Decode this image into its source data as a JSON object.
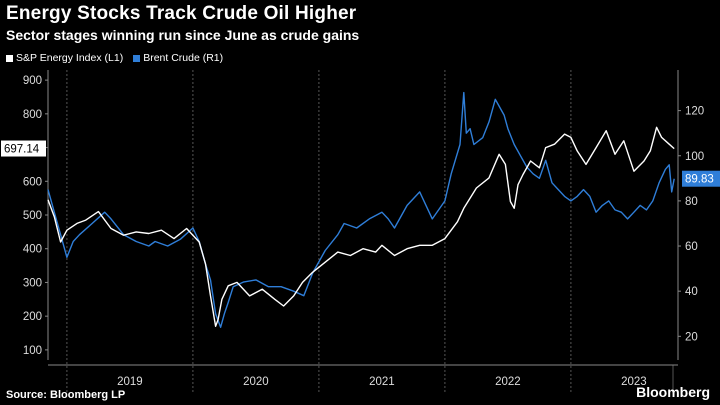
{
  "title": "Energy Stocks Track Crude Oil Higher",
  "subtitle": "Sector stages winning run since June as crude gains",
  "source": "Source: Bloomberg LP",
  "brand": "Bloomberg",
  "colors": {
    "background": "#000000",
    "energy": "#ffffff",
    "brent": "#2f7ed8",
    "grid": "#555555"
  },
  "chart_data": {
    "type": "line",
    "title": "Energy Stocks Track Crude Oil Higher",
    "subtitle": "Sector stages winning run since June as crude gains",
    "x_labels": [
      "2019",
      "2020",
      "2021",
      "2022",
      "2023"
    ],
    "x_range": [
      2018.85,
      2023.85
    ],
    "left_axis": {
      "ticks": [
        100,
        200,
        300,
        400,
        500,
        600,
        700,
        800,
        900
      ],
      "ylim": [
        70,
        930
      ]
    },
    "right_axis": {
      "ticks": [
        20,
        40,
        60,
        80,
        100,
        120
      ],
      "ylim": [
        9.5,
        138
      ]
    },
    "last_value_labels": {
      "energy": "697.14",
      "brent": "89.83"
    },
    "grid": "vertical",
    "legend_position": "top-left",
    "series": [
      {
        "name": "S&P Energy Index (L1)",
        "axis": "left",
        "x": [
          2018.85,
          2018.9,
          2018.95,
          2019.0,
          2019.08,
          2019.15,
          2019.25,
          2019.35,
          2019.45,
          2019.55,
          2019.65,
          2019.75,
          2019.85,
          2019.95,
          2020.05,
          2020.1,
          2020.14,
          2020.18,
          2020.2,
          2020.23,
          2020.28,
          2020.35,
          2020.45,
          2020.55,
          2020.65,
          2020.72,
          2020.8,
          2020.87,
          2020.95,
          2021.05,
          2021.15,
          2021.25,
          2021.35,
          2021.45,
          2021.5,
          2021.6,
          2021.7,
          2021.8,
          2021.9,
          2022.0,
          2022.1,
          2022.15,
          2022.25,
          2022.35,
          2022.43,
          2022.48,
          2022.52,
          2022.55,
          2022.58,
          2022.62,
          2022.68,
          2022.75,
          2022.8,
          2022.87,
          2022.95,
          2023.0,
          2023.05,
          2023.12,
          2023.2,
          2023.28,
          2023.35,
          2023.42,
          2023.5,
          2023.58,
          2023.63,
          2023.68,
          2023.72,
          2023.78,
          2023.82
        ],
        "values": [
          545,
          495,
          420,
          455,
          475,
          485,
          510,
          460,
          440,
          450,
          445,
          455,
          430,
          460,
          420,
          355,
          260,
          170,
          190,
          250,
          290,
          300,
          260,
          280,
          250,
          230,
          260,
          300,
          330,
          360,
          390,
          380,
          400,
          390,
          410,
          380,
          400,
          410,
          410,
          430,
          480,
          520,
          580,
          610,
          680,
          650,
          540,
          520,
          590,
          620,
          660,
          640,
          700,
          710,
          740,
          730,
          690,
          650,
          700,
          750,
          680,
          720,
          630,
          660,
          690,
          760,
          730,
          710,
          697
        ]
      },
      {
        "name": "Brent Crude (R1)",
        "axis": "right",
        "x": [
          2018.85,
          2018.9,
          2018.95,
          2019.0,
          2019.05,
          2019.1,
          2019.2,
          2019.3,
          2019.35,
          2019.45,
          2019.55,
          2019.65,
          2019.7,
          2019.8,
          2019.9,
          2020.0,
          2020.05,
          2020.1,
          2020.14,
          2020.18,
          2020.22,
          2020.25,
          2020.28,
          2020.32,
          2020.4,
          2020.5,
          2020.6,
          2020.7,
          2020.8,
          2020.88,
          2020.95,
          2021.05,
          2021.15,
          2021.2,
          2021.3,
          2021.4,
          2021.5,
          2021.55,
          2021.6,
          2021.7,
          2021.8,
          2021.85,
          2021.9,
          2022.0,
          2022.05,
          2022.12,
          2022.15,
          2022.17,
          2022.2,
          2022.23,
          2022.3,
          2022.35,
          2022.4,
          2022.43,
          2022.47,
          2022.5,
          2022.55,
          2022.6,
          2022.65,
          2022.7,
          2022.75,
          2022.8,
          2022.85,
          2022.9,
          2022.95,
          2023.0,
          2023.05,
          2023.1,
          2023.15,
          2023.2,
          2023.25,
          2023.3,
          2023.35,
          2023.4,
          2023.45,
          2023.5,
          2023.55,
          2023.6,
          2023.65,
          2023.7,
          2023.75,
          2023.78,
          2023.8,
          2023.82
        ],
        "values": [
          85,
          75,
          65,
          55,
          62,
          65,
          70,
          75,
          72,
          65,
          62,
          60,
          62,
          60,
          63,
          68,
          62,
          52,
          45,
          30,
          24,
          30,
          35,
          42,
          44,
          45,
          42,
          42,
          40,
          38,
          48,
          58,
          65,
          70,
          68,
          72,
          75,
          72,
          68,
          78,
          84,
          78,
          72,
          80,
          92,
          105,
          128,
          110,
          112,
          105,
          108,
          115,
          125,
          122,
          118,
          112,
          105,
          100,
          95,
          92,
          90,
          98,
          88,
          85,
          82,
          80,
          82,
          85,
          82,
          75,
          78,
          80,
          76,
          75,
          72,
          75,
          78,
          76,
          80,
          88,
          94,
          96,
          84,
          89.83
        ]
      }
    ]
  }
}
